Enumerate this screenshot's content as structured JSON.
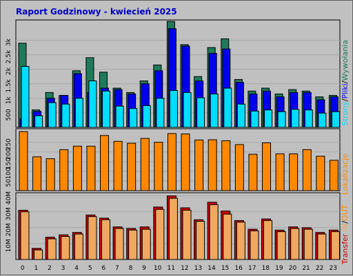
{
  "title": "Raport Godzinowy -  kwiecień 2025",
  "colors": {
    "background": "#c0c0c0",
    "plot_background": "#c0c0c0",
    "title": "#0000cc",
    "grid": "#a8a8a8",
    "hits": "#1f7a5a",
    "files": "#0000ee",
    "pages": "#00ddff",
    "visits": "#ff8800",
    "kbytes_out": "#cc0000",
    "kbytes_in": "#f0a860",
    "label_slash": "#000000"
  },
  "side_labels": {
    "top": {
      "pages": "Strony",
      "sep1": "/",
      "files": "Pliki",
      "sep2": "/",
      "hits": "Wywołania"
    },
    "middle": {
      "visits": "Lokalizacje"
    },
    "bottom": {
      "transfer": "Transfer",
      "in": "IN",
      "sep": "/",
      "out": "OUT"
    }
  },
  "chart_data": [
    {
      "type": "bar",
      "name": "hits-files-pages",
      "categories": [
        "0",
        "1",
        "2",
        "3",
        "4",
        "5",
        "6",
        "7",
        "8",
        "9",
        "10",
        "11",
        "12",
        "13",
        "14",
        "15",
        "16",
        "17",
        "18",
        "19",
        "20",
        "21",
        "22",
        "23"
      ],
      "series": [
        {
          "name": "Wywołania",
          "values": [
            2900,
            600,
            1200,
            1100,
            1950,
            2400,
            1900,
            1350,
            1200,
            1600,
            2150,
            3650,
            2850,
            1750,
            2750,
            3050,
            1650,
            1250,
            1350,
            1150,
            1300,
            1250,
            1050,
            1100
          ]
        },
        {
          "name": "Pliki",
          "values": [
            300,
            550,
            1000,
            1100,
            1850,
            1200,
            1350,
            1300,
            1150,
            1500,
            1950,
            3400,
            2800,
            1600,
            2550,
            2700,
            1550,
            1150,
            1250,
            1050,
            1200,
            1200,
            950,
            1050
          ]
        },
        {
          "name": "Strony",
          "values": [
            2100,
            400,
            850,
            800,
            1000,
            1600,
            1250,
            730,
            650,
            750,
            1000,
            1270,
            1200,
            1020,
            1150,
            1350,
            800,
            560,
            600,
            540,
            620,
            600,
            490,
            540
          ]
        }
      ],
      "ylim": [
        0,
        3700
      ],
      "y_ticks": [
        "500",
        "1k",
        "1.5k",
        "2k",
        "2.5k",
        "3k"
      ],
      "y_tick_values": [
        500,
        1000,
        1500,
        2000,
        2500,
        3000
      ]
    },
    {
      "type": "bar",
      "name": "visits",
      "categories": [
        "0",
        "1",
        "2",
        "3",
        "4",
        "5",
        "6",
        "7",
        "8",
        "9",
        "10",
        "11",
        "12",
        "13",
        "14",
        "15",
        "16",
        "17",
        "18",
        "19",
        "20",
        "21",
        "22",
        "23"
      ],
      "series": [
        {
          "name": "Lokalizacje",
          "values": [
            305,
            175,
            165,
            212,
            230,
            230,
            285,
            255,
            245,
            270,
            250,
            295,
            293,
            262,
            263,
            258,
            238,
            188,
            247,
            190,
            190,
            212,
            178,
            157
          ]
        }
      ],
      "ylim": [
        0,
        320
      ],
      "y_ticks": [
        "50",
        "100",
        "150",
        "200",
        "250"
      ],
      "y_tick_values": [
        50,
        100,
        150,
        200,
        250
      ]
    },
    {
      "type": "bar",
      "name": "transfer",
      "categories": [
        "0",
        "1",
        "2",
        "3",
        "4",
        "5",
        "6",
        "7",
        "8",
        "9",
        "10",
        "11",
        "12",
        "13",
        "14",
        "15",
        "16",
        "17",
        "18",
        "19",
        "20",
        "21",
        "22",
        "23"
      ],
      "series": [
        {
          "name": "OUT",
          "values": [
            31,
            7,
            14,
            15.5,
            17,
            28,
            26,
            20.5,
            19.5,
            20.5,
            33,
            40,
            32.5,
            25,
            36,
            30.5,
            24.5,
            19,
            25.5,
            18.5,
            20.5,
            20,
            17,
            18.5
          ]
        },
        {
          "name": "IN",
          "values": [
            30,
            6,
            13,
            14.5,
            16,
            27,
            25,
            19.5,
            18.5,
            19,
            31.5,
            38.5,
            31,
            24,
            34.5,
            28.5,
            23.5,
            18,
            24.5,
            17.5,
            19.5,
            19,
            16,
            17.5
          ]
        }
      ],
      "ylim": [
        0,
        42
      ],
      "y_ticks": [
        "10M",
        "20M",
        "30M",
        "40M"
      ],
      "y_tick_values": [
        10,
        20,
        30,
        40
      ]
    }
  ]
}
